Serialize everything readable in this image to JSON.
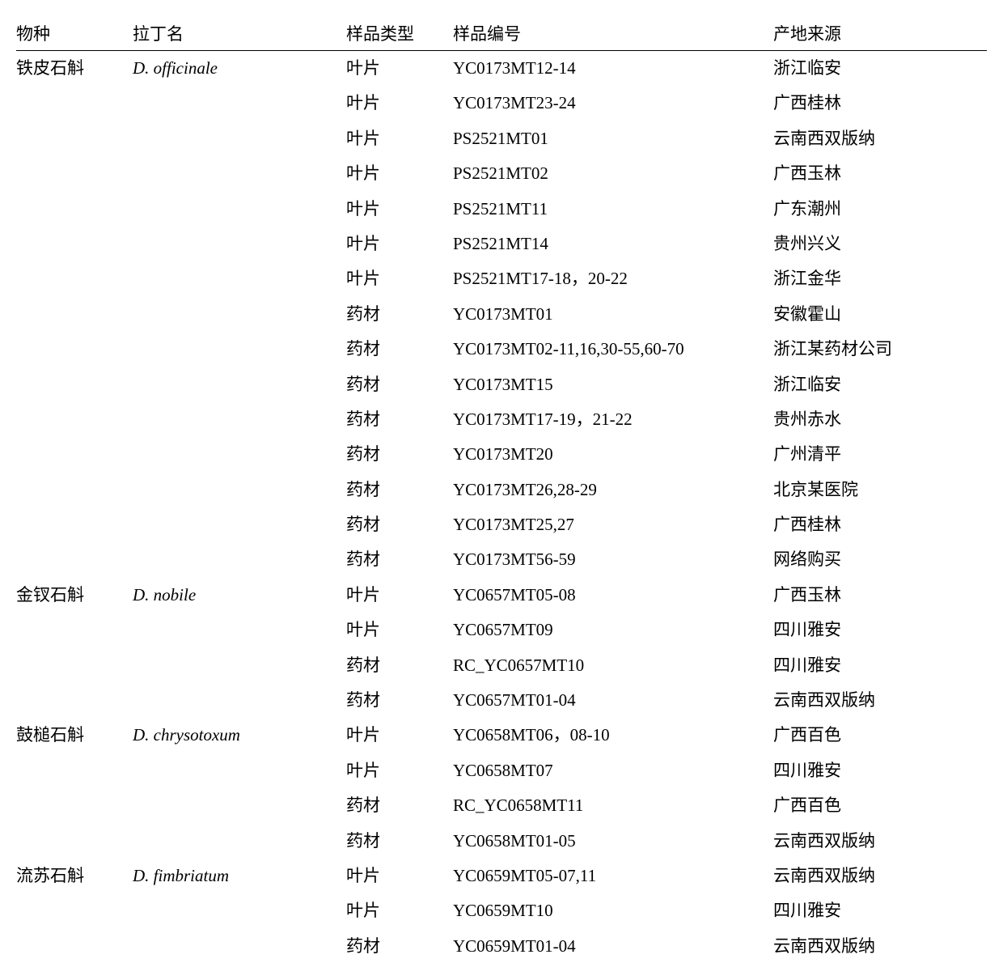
{
  "headers": {
    "species": "物种",
    "latin": "拉丁名",
    "sample_type": "样品类型",
    "sample_id": "样品编号",
    "origin": "产地来源"
  },
  "rows": [
    {
      "species": "铁皮石斛",
      "latin": "D. officinale",
      "type": "叶片",
      "id": "YC0173MT12-14",
      "origin": "浙江临安"
    },
    {
      "species": "",
      "latin": "",
      "type": "叶片",
      "id": "YC0173MT23-24",
      "origin": "广西桂林"
    },
    {
      "species": "",
      "latin": "",
      "type": "叶片",
      "id": "PS2521MT01",
      "origin": "云南西双版纳"
    },
    {
      "species": "",
      "latin": "",
      "type": "叶片",
      "id": "PS2521MT02",
      "origin": "广西玉林"
    },
    {
      "species": "",
      "latin": "",
      "type": "叶片",
      "id": "PS2521MT11",
      "origin": "广东潮州"
    },
    {
      "species": "",
      "latin": "",
      "type": "叶片",
      "id": "PS2521MT14",
      "origin": "贵州兴义"
    },
    {
      "species": "",
      "latin": "",
      "type": "叶片",
      "id": "PS2521MT17-18，20-22",
      "origin": "浙江金华"
    },
    {
      "species": "",
      "latin": "",
      "type": "药材",
      "id": "YC0173MT01",
      "origin": "安徽霍山"
    },
    {
      "species": "",
      "latin": "",
      "type": "药材",
      "id": "YC0173MT02-11,16,30-55,60-70",
      "origin": "浙江某药材公司"
    },
    {
      "species": "",
      "latin": "",
      "type": "药材",
      "id": "YC0173MT15",
      "origin": "浙江临安"
    },
    {
      "species": "",
      "latin": "",
      "type": "药材",
      "id": "YC0173MT17-19，21-22",
      "origin": "贵州赤水"
    },
    {
      "species": "",
      "latin": "",
      "type": "药材",
      "id": "YC0173MT20",
      "origin": "广州清平"
    },
    {
      "species": "",
      "latin": "",
      "type": "药材",
      "id": "YC0173MT26,28-29",
      "origin": "北京某医院"
    },
    {
      "species": "",
      "latin": "",
      "type": "药材",
      "id": "YC0173MT25,27",
      "origin": "广西桂林"
    },
    {
      "species": "",
      "latin": "",
      "type": "药材",
      "id": "YC0173MT56-59",
      "origin": "网络购买"
    },
    {
      "species": "金钗石斛",
      "latin": "D. nobile",
      "type": "叶片",
      "id": "YC0657MT05-08",
      "origin": "广西玉林"
    },
    {
      "species": "",
      "latin": "",
      "type": "叶片",
      "id": "YC0657MT09",
      "origin": "四川雅安"
    },
    {
      "species": "",
      "latin": "",
      "type": "药材",
      "id": "RC_YC0657MT10",
      "origin": "四川雅安"
    },
    {
      "species": "",
      "latin": "",
      "type": "药材",
      "id": "YC0657MT01-04",
      "origin": "云南西双版纳"
    },
    {
      "species": "鼓槌石斛",
      "latin": "D. chrysotoxum",
      "type": "叶片",
      "id": "YC0658MT06，08-10",
      "origin": "广西百色"
    },
    {
      "species": "",
      "latin": "",
      "type": "叶片",
      "id": "YC0658MT07",
      "origin": "四川雅安"
    },
    {
      "species": "",
      "latin": "",
      "type": "药材",
      "id": "RC_YC0658MT11",
      "origin": "广西百色"
    },
    {
      "species": "",
      "latin": "",
      "type": "药材",
      "id": "YC0658MT01-05",
      "origin": "云南西双版纳"
    },
    {
      "species": "流苏石斛",
      "latin": "D. fimbriatum",
      "type": "叶片",
      "id": "YC0659MT05-07,11",
      "origin": "云南西双版纳"
    },
    {
      "species": "",
      "latin": "",
      "type": "叶片",
      "id": "YC0659MT10",
      "origin": "四川雅安"
    },
    {
      "species": "",
      "latin": "",
      "type": "药材",
      "id": "YC0659MT01-04",
      "origin": "云南西双版纳"
    }
  ]
}
